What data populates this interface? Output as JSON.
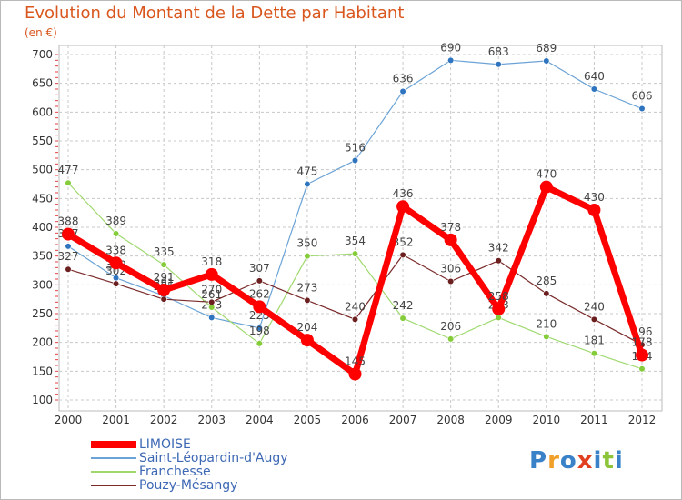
{
  "title": "Evolution du Montant de la Dette par Habitant",
  "unit": "(en €)",
  "logo": {
    "text": "Proxiti",
    "letters": [
      "P",
      "r",
      "o",
      "x",
      "i",
      "t",
      "i"
    ],
    "colors": [
      "#3a82c8",
      "#f0a02a",
      "#3a82c8",
      "#e04020",
      "#3a82c8",
      "#8cc43a",
      "#3a82c8"
    ]
  },
  "chart_data": {
    "type": "line",
    "x": [
      "2000",
      "2001",
      "2002",
      "2003",
      "2004",
      "2005",
      "2006",
      "2007",
      "2008",
      "2009",
      "2010",
      "2011",
      "2012"
    ],
    "ylim": [
      100,
      700
    ],
    "yticks": [
      "100",
      "150",
      "200",
      "250",
      "300",
      "350",
      "400",
      "450",
      "500",
      "550",
      "600",
      "650",
      "700"
    ],
    "grid": true,
    "legend_position": "bottom-left",
    "series": [
      {
        "name": "Saint-Léopardin-d'Augy",
        "color": "#6ba3d6",
        "marker": "#2f74bf",
        "width": 1.2,
        "values": [
          367,
          312,
          281,
          243,
          225,
          475,
          516,
          636,
          690,
          683,
          689,
          640,
          606
        ],
        "labels": [
          "367",
          "312",
          "281",
          "243",
          "225",
          "475",
          "516",
          "636",
          "690",
          "683",
          "689",
          "640",
          "606"
        ]
      },
      {
        "name": "Franchesse",
        "color": "#9fd96e",
        "marker": "#84cc3a",
        "width": 1.2,
        "values": [
          477,
          389,
          335,
          261,
          198,
          350,
          354,
          242,
          206,
          243,
          210,
          181,
          154
        ],
        "labels": [
          "477",
          "389",
          "335",
          "261",
          "198",
          "350",
          "354",
          "242",
          "206",
          "243",
          "210",
          "181",
          "154"
        ]
      },
      {
        "name": "Pouzy-Mésangy",
        "color": "#7a2a2a",
        "marker": "#6b1f1f",
        "width": 1.2,
        "values": [
          327,
          302,
          275,
          270,
          307,
          273,
          240,
          352,
          306,
          342,
          285,
          240,
          196
        ],
        "labels": [
          "327",
          "302",
          "275",
          "270",
          "307",
          "273",
          "240",
          "352",
          "306",
          "342",
          "285",
          "240",
          "196"
        ]
      },
      {
        "name": "LIMOISE",
        "color": "#ff0000",
        "marker": "#ff0000",
        "width": 7,
        "values": [
          388,
          338,
          291,
          318,
          262,
          204,
          145,
          436,
          378,
          258,
          470,
          430,
          178
        ],
        "labels": [
          "388",
          "338",
          "291",
          "318",
          "262",
          "204",
          "145",
          "436",
          "378",
          "258",
          "470",
          "430",
          "178"
        ]
      }
    ],
    "legend": [
      "LIMOISE",
      "Saint-Léopardin-d'Augy",
      "Franchesse",
      "Pouzy-Mésangy"
    ]
  }
}
